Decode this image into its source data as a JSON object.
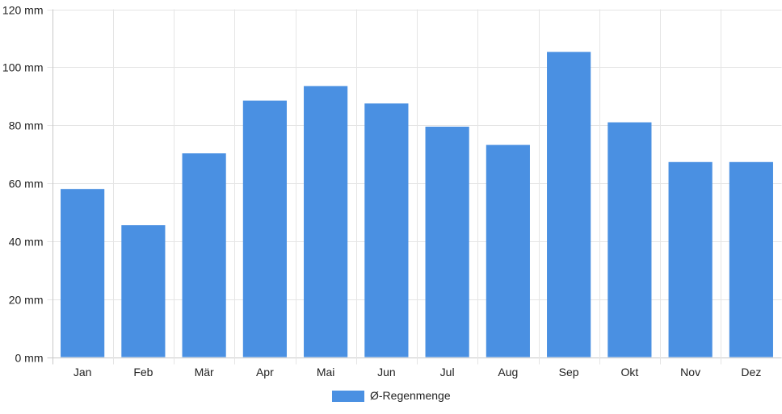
{
  "chart_data": {
    "type": "bar",
    "categories": [
      "Jan",
      "Feb",
      "Mär",
      "Apr",
      "Mai",
      "Jun",
      "Jul",
      "Aug",
      "Sep",
      "Okt",
      "Nov",
      "Dez"
    ],
    "series": [
      {
        "name": "Ø-Regenmenge",
        "values": [
          58,
          45.5,
          70.3,
          88.5,
          93.5,
          87.5,
          79.5,
          73.2,
          105.3,
          81,
          67.3,
          67.3
        ],
        "color": "#4a90e2"
      }
    ],
    "y_ticks": [
      "0 mm",
      "20 mm",
      "40 mm",
      "60 mm",
      "80 mm",
      "100 mm",
      "120 mm"
    ],
    "ylim": [
      0,
      120
    ],
    "y_unit": "mm",
    "grid": true,
    "legend_position": "bottom-center"
  }
}
